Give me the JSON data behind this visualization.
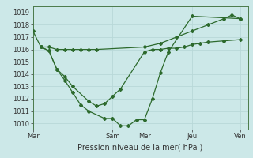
{
  "bg_color": "#cce8e8",
  "grid_color": "#b8d8d8",
  "line_color": "#2d6a2d",
  "marker_color": "#2d6a2d",
  "xlabel": "Pression niveau de la mer( hPa )",
  "ylim": [
    1009.5,
    1019.5
  ],
  "yticks": [
    1010,
    1011,
    1012,
    1013,
    1014,
    1015,
    1016,
    1017,
    1018,
    1019
  ],
  "x_day_labels": [
    "Mar",
    "Sam",
    "Mer",
    "Jeu",
    "Ven"
  ],
  "x_day_positions": [
    0,
    40,
    56,
    80,
    104
  ],
  "xlim": [
    0,
    108
  ],
  "series1_x": [
    0,
    4,
    8,
    12,
    16,
    20,
    24,
    28,
    32,
    56,
    64,
    72,
    80,
    88,
    96,
    100,
    104
  ],
  "series1_y": [
    1017.5,
    1016.2,
    1016.2,
    1016.0,
    1016.0,
    1016.0,
    1016.0,
    1016.0,
    1016.0,
    1016.2,
    1016.5,
    1017.0,
    1017.5,
    1018.0,
    1018.5,
    1018.8,
    1018.5
  ],
  "series2_x": [
    4,
    8,
    12,
    16,
    20,
    28,
    32,
    36,
    40,
    44,
    56,
    60,
    64,
    68,
    72,
    76,
    80,
    84,
    88,
    96,
    104
  ],
  "series2_y": [
    1016.2,
    1015.9,
    1014.4,
    1013.8,
    1013.0,
    1011.8,
    1011.4,
    1011.6,
    1012.2,
    1012.8,
    1015.8,
    1016.0,
    1016.0,
    1016.1,
    1016.1,
    1016.2,
    1016.4,
    1016.5,
    1016.6,
    1016.7,
    1016.8
  ],
  "series3_x": [
    4,
    8,
    12,
    16,
    20,
    24,
    28,
    36,
    40,
    44,
    48,
    52,
    56,
    60,
    64,
    68,
    80,
    104
  ],
  "series3_y": [
    1016.2,
    1015.9,
    1014.4,
    1013.5,
    1012.5,
    1011.5,
    1011.0,
    1010.4,
    1010.4,
    1009.8,
    1009.8,
    1010.3,
    1010.3,
    1012.0,
    1014.1,
    1015.8,
    1018.7,
    1018.5
  ],
  "lw": 0.9,
  "ms": 2.0,
  "tick_fontsize": 6,
  "xlabel_fontsize": 7
}
